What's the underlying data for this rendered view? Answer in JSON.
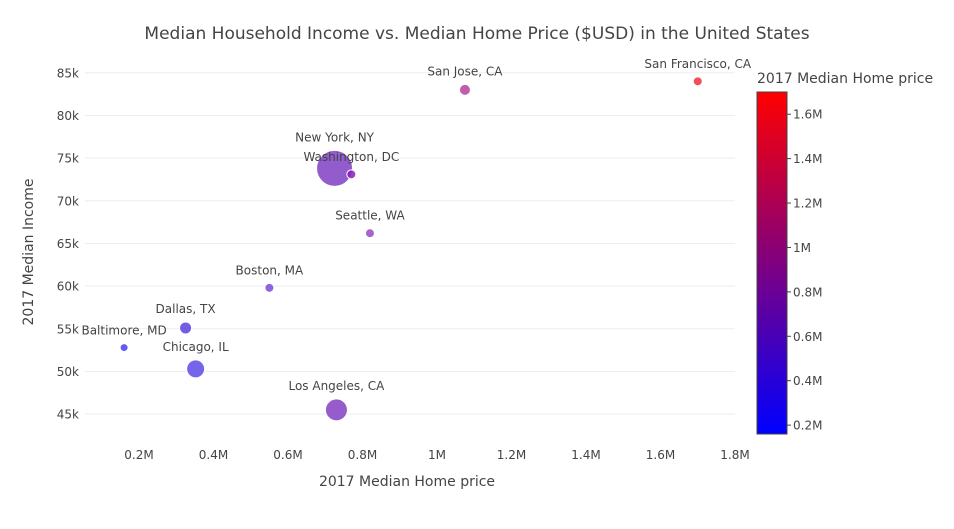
{
  "chart_data": {
    "type": "scatter",
    "title": "Median Household Income vs. Median Home Price ($USD) in the United States",
    "xlabel": "2017 Median Home price",
    "ylabel": "2017 Median Income",
    "xlim": [
      55000,
      1800000
    ],
    "ylim": [
      41500,
      86500
    ],
    "x_ticks": [
      {
        "value": 200000,
        "label": "0.2M"
      },
      {
        "value": 400000,
        "label": "0.4M"
      },
      {
        "value": 600000,
        "label": "0.6M"
      },
      {
        "value": 800000,
        "label": "0.8M"
      },
      {
        "value": 1000000,
        "label": "1M"
      },
      {
        "value": 1200000,
        "label": "1.2M"
      },
      {
        "value": 1400000,
        "label": "1.4M"
      },
      {
        "value": 1600000,
        "label": "1.6M"
      },
      {
        "value": 1800000,
        "label": "1.8M"
      }
    ],
    "y_ticks": [
      {
        "value": 45000,
        "label": "45k"
      },
      {
        "value": 50000,
        "label": "50k"
      },
      {
        "value": 55000,
        "label": "55k"
      },
      {
        "value": 60000,
        "label": "60k"
      },
      {
        "value": 65000,
        "label": "65k"
      },
      {
        "value": 70000,
        "label": "70k"
      },
      {
        "value": 75000,
        "label": "75k"
      },
      {
        "value": 80000,
        "label": "80k"
      },
      {
        "value": 85000,
        "label": "85k"
      }
    ],
    "grid": true,
    "points": [
      {
        "label": "San Francisco, CA",
        "x": 1700000,
        "y": 84000,
        "size": 9,
        "color": "#f0303c"
      },
      {
        "label": "San Jose, CA",
        "x": 1075000,
        "y": 83000,
        "size": 11,
        "color": "#b73f9c"
      },
      {
        "label": "New York, NY",
        "x": 725000,
        "y": 73800,
        "size": 36,
        "color": "#7f3fc4"
      },
      {
        "label": "Washington, DC",
        "x": 770000,
        "y": 73100,
        "size": 9,
        "color": "#8a1eb8"
      },
      {
        "label": "Seattle, WA",
        "x": 820000,
        "y": 66200,
        "size": 9,
        "color": "#9a48c2"
      },
      {
        "label": "Boston, MA",
        "x": 550000,
        "y": 59800,
        "size": 9,
        "color": "#7a4ad8"
      },
      {
        "label": "Dallas, TX",
        "x": 325000,
        "y": 55100,
        "size": 12,
        "color": "#5a3fe0"
      },
      {
        "label": "Baltimore, MD",
        "x": 160000,
        "y": 52800,
        "size": 8,
        "color": "#4a40f0"
      },
      {
        "label": "Chicago, IL",
        "x": 352000,
        "y": 50300,
        "size": 18,
        "color": "#5d4ae6"
      },
      {
        "label": "Los Angeles, CA",
        "x": 730000,
        "y": 45500,
        "size": 22,
        "color": "#8440c2"
      }
    ],
    "colorbar": {
      "title": "2017 Median Home price",
      "range": [
        160000,
        1700000
      ],
      "colors": [
        "#0000ff",
        "#ff0000"
      ],
      "ticks": [
        {
          "value": 200000,
          "label": "0.2M"
        },
        {
          "value": 400000,
          "label": "0.4M"
        },
        {
          "value": 600000,
          "label": "0.6M"
        },
        {
          "value": 800000,
          "label": "0.8M"
        },
        {
          "value": 1000000,
          "label": "1M"
        },
        {
          "value": 1200000,
          "label": "1.2M"
        },
        {
          "value": 1400000,
          "label": "1.4M"
        },
        {
          "value": 1600000,
          "label": "1.6M"
        }
      ]
    }
  }
}
